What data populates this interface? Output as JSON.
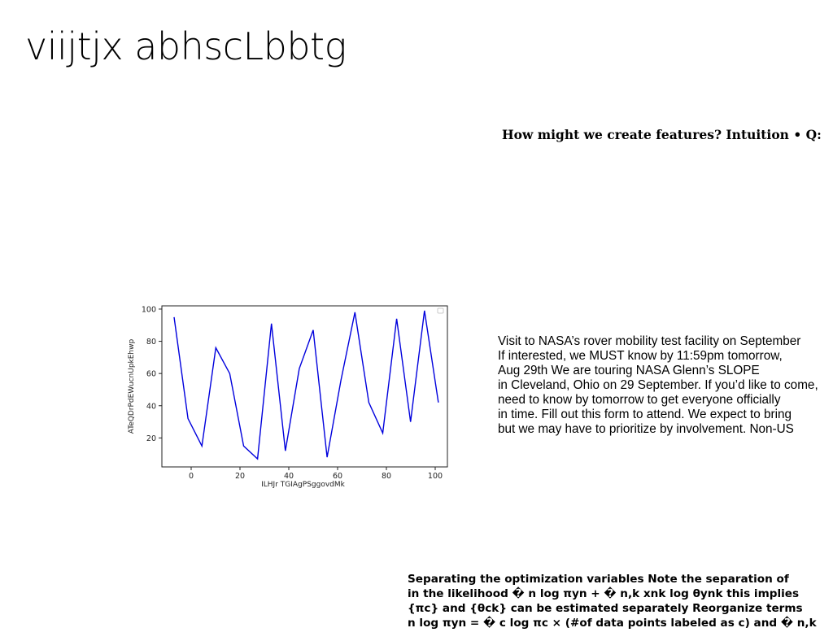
{
  "slide": {
    "title": "viijtjx abhscLbbtg",
    "question": "How might we create features? Intuition • Q:",
    "announcement_lines": [
      "Visit to NASA’s rover mobility test facility on September",
      "If interested, we MUST know by 11:59pm tomorrow,",
      "Aug 29th We are touring NASA Glenn’s SLOPE",
      "in Cleveland, Ohio on 29 September. If you’d like to come,",
      "need to know by tomorrow to get everyone officially",
      "in time. Fill out this form to attend. We expect to bring",
      "but we may have to prioritize by involvement. Non-US"
    ],
    "optimization_lines": [
      "Separating the optimization variables Note the separation of",
      "in the likelihood � n log πyn + � n,k xnk log θynk this implies",
      "{πc} and {θck} can be estimated separately Reorganize terms",
      "n log πyn = � c log πc × (#of data points labeled as c) and � n,k"
    ]
  },
  "chart_data": {
    "type": "line",
    "xlabel": "ILHJr TGIAgPSggovdMk",
    "ylabel": "ATeQDrPdEWucnUpkEhwp",
    "xlim": [
      -12,
      105
    ],
    "ylim": [
      2,
      102
    ],
    "xticks": [
      0,
      20,
      40,
      60,
      80,
      100
    ],
    "yticks": [
      20,
      40,
      60,
      80,
      100
    ],
    "legend": "top-right (empty)",
    "grid": false,
    "series": [
      {
        "color": "#0000dd",
        "x": [
          -7,
          -1.3,
          4.4,
          10.1,
          15.8,
          21.5,
          27.2,
          32.9,
          38.6,
          44.3,
          50,
          55.7,
          61.4,
          67.1,
          72.8,
          78.5,
          84.2,
          89.9,
          95.6,
          101.3
        ],
        "y": [
          95,
          32,
          15,
          76,
          60,
          15,
          7,
          91,
          12,
          63,
          87,
          8,
          56,
          98,
          42,
          23,
          94,
          30,
          99,
          42
        ]
      }
    ]
  }
}
